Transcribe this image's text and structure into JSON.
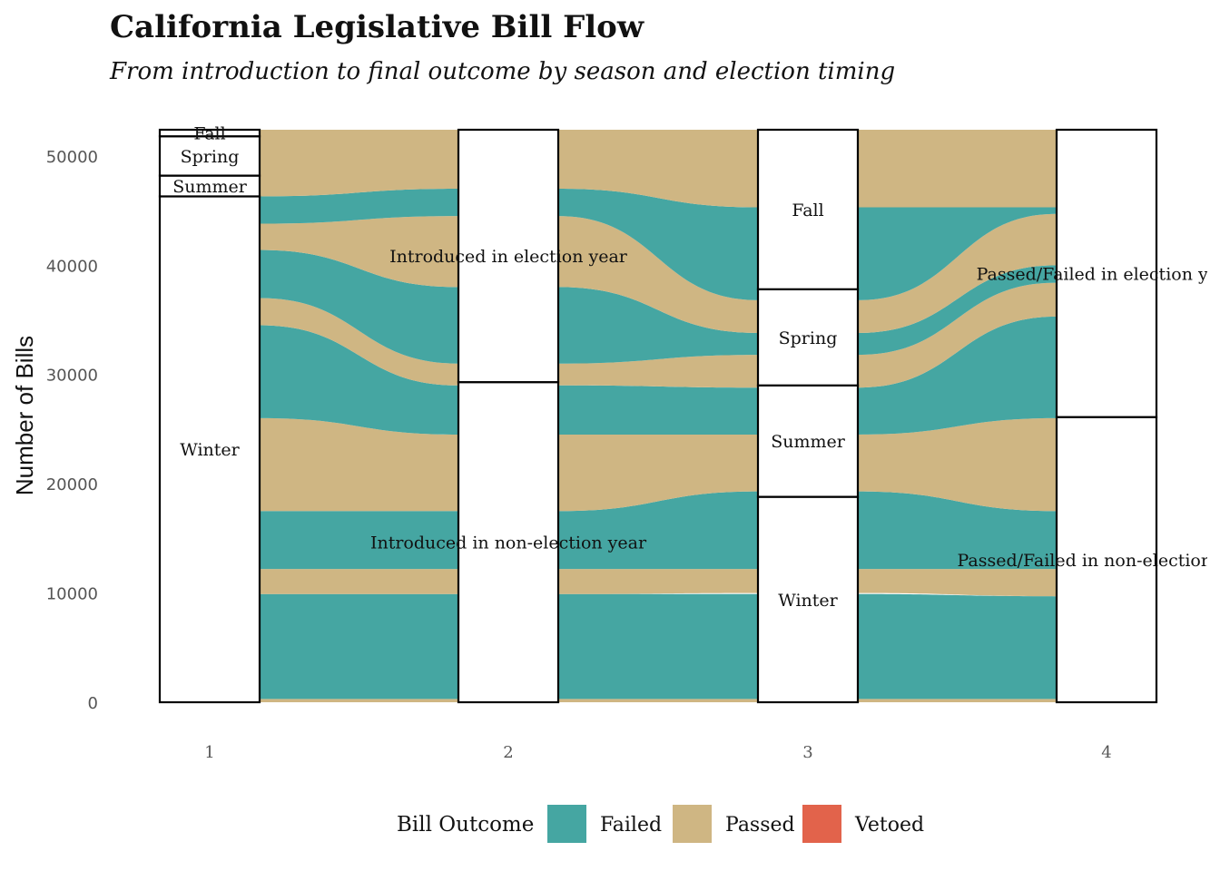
{
  "chart_data": {
    "type": "alluvial",
    "title": "California Legislative Bill Flow",
    "subtitle": "From introduction to final outcome by season and election timing",
    "ylabel": "Number of Bills",
    "xlabel": "",
    "ylim": [
      0,
      52500
    ],
    "y_ticks": [
      0,
      10000,
      20000,
      30000,
      40000,
      50000
    ],
    "x_axes": [
      "1",
      "2",
      "3",
      "4"
    ],
    "grid": false,
    "legend": {
      "title": "Bill Outcome",
      "placement": "bottom",
      "entries": [
        {
          "name": "Failed",
          "color": "#45a6a2"
        },
        {
          "name": "Passed",
          "color": "#cfb683"
        },
        {
          "name": "Vetoed",
          "color": "#e2634b"
        }
      ]
    },
    "axes": [
      {
        "id": "1",
        "strata": [
          {
            "label": "Winter",
            "count": 46300
          },
          {
            "label": "Summer",
            "count": 1900
          },
          {
            "label": "Spring",
            "count": 3600
          },
          {
            "label": "Fall",
            "count": 600
          }
        ]
      },
      {
        "id": "2",
        "strata": [
          {
            "label": "Introduced in non-election year",
            "count": 29300
          },
          {
            "label": "Introduced in election year",
            "count": 23100
          }
        ]
      },
      {
        "id": "3",
        "strata": [
          {
            "label": "Winter",
            "count": 18800
          },
          {
            "label": "Summer",
            "count": 10200
          },
          {
            "label": "Spring",
            "count": 8800
          },
          {
            "label": "Fall",
            "count": 14600
          }
        ]
      },
      {
        "id": "4",
        "strata": [
          {
            "label": "Passed/Failed in non-election year",
            "count": 26100
          },
          {
            "label": "Passed/Failed in election year",
            "count": 26300
          }
        ]
      }
    ],
    "flows": [
      {
        "outcome": "Passed",
        "from": [
          [
            0,
            300
          ],
          [
            0,
            300
          ],
          [
            0,
            300
          ],
          [
            0,
            300
          ]
        ]
      },
      {
        "outcome": "Failed",
        "from": [
          [
            300,
            9900
          ],
          [
            300,
            9900
          ],
          [
            300,
            9900
          ],
          [
            300,
            9700
          ]
        ]
      },
      {
        "outcome": "Passed",
        "from": [
          [
            9900,
            12200
          ],
          [
            9900,
            12200
          ],
          [
            10000,
            12200
          ],
          [
            9700,
            12200
          ]
        ]
      },
      {
        "outcome": "Failed",
        "from": [
          [
            12200,
            17500
          ],
          [
            12200,
            17500
          ],
          [
            12200,
            19300
          ],
          [
            12200,
            17500
          ]
        ]
      },
      {
        "outcome": "Passed",
        "from": [
          [
            17500,
            26000
          ],
          [
            17500,
            24500
          ],
          [
            19300,
            24500
          ],
          [
            17500,
            26000
          ]
        ]
      },
      {
        "outcome": "Failed",
        "from": [
          [
            26000,
            34500
          ],
          [
            24500,
            29000
          ],
          [
            24500,
            28800
          ],
          [
            26000,
            35300
          ]
        ]
      },
      {
        "outcome": "Passed",
        "from": [
          [
            34500,
            37000
          ],
          [
            29000,
            31000
          ],
          [
            28800,
            31800
          ],
          [
            35300,
            38400
          ]
        ]
      },
      {
        "outcome": "Failed",
        "from": [
          [
            37000,
            41400
          ],
          [
            31000,
            38000
          ],
          [
            31800,
            33800
          ],
          [
            38400,
            40000
          ]
        ]
      },
      {
        "outcome": "Passed",
        "from": [
          [
            41400,
            43800
          ],
          [
            38000,
            44500
          ],
          [
            33800,
            36800
          ],
          [
            40000,
            44700
          ]
        ]
      },
      {
        "outcome": "Failed",
        "from": [
          [
            43800,
            46300
          ],
          [
            44500,
            47000
          ],
          [
            36800,
            45300
          ],
          [
            44700,
            45300
          ]
        ]
      },
      {
        "outcome": "Passed",
        "from": [
          [
            46300,
            52400
          ],
          [
            47000,
            52400
          ],
          [
            45300,
            52400
          ],
          [
            45300,
            52400
          ]
        ]
      }
    ]
  }
}
